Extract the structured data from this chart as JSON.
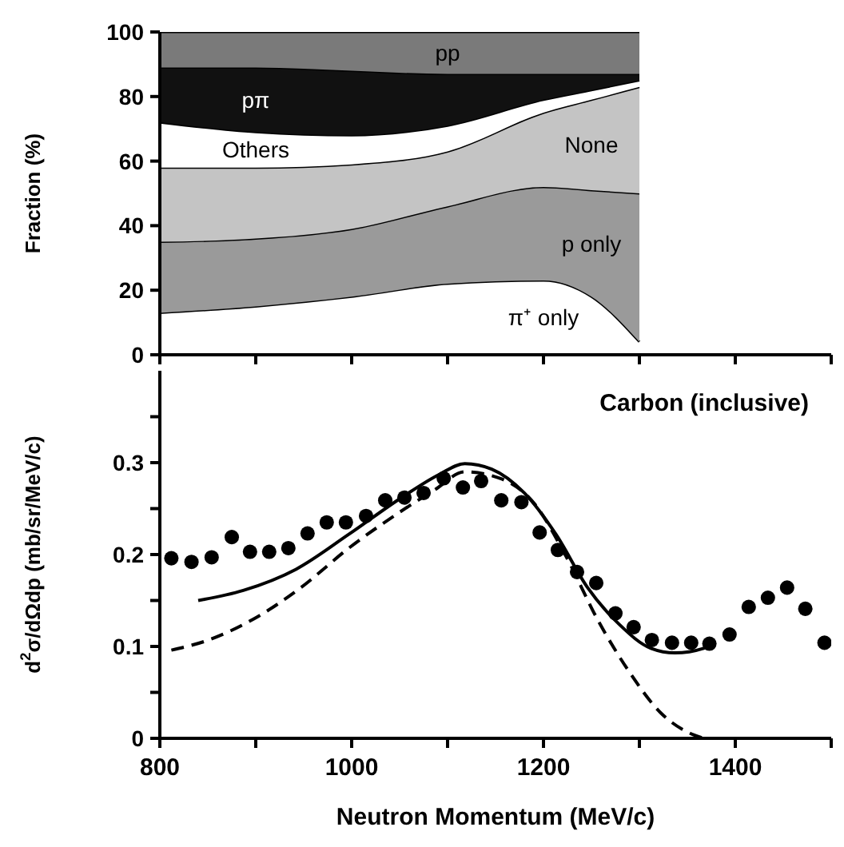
{
  "chart_data": [
    {
      "type": "area",
      "stacked": true,
      "ylabel": "Fraction (%)",
      "xlim": [
        800,
        1500
      ],
      "xticks": [
        800,
        900,
        1000,
        1100,
        1200,
        1300,
        1400,
        1500
      ],
      "ylim": [
        0,
        100
      ],
      "yticks": [
        0,
        20,
        40,
        60,
        80,
        100
      ],
      "tick_labels": "y",
      "x": [
        800,
        900,
        1000,
        1100,
        1200,
        1250,
        1300
      ],
      "series": [
        {
          "name": "π⁺ only",
          "color": "#ffffff",
          "values": [
            13,
            15,
            18,
            22,
            23,
            18,
            4
          ]
        },
        {
          "name": "p only",
          "color": "#9a9a9a",
          "values": [
            22,
            21,
            21,
            24,
            29,
            33,
            46
          ]
        },
        {
          "name": "None",
          "color": "#c4c4c4",
          "values": [
            23,
            22,
            20,
            17,
            23,
            28,
            33
          ]
        },
        {
          "name": "Others",
          "color": "#ffffff",
          "values": [
            14,
            11,
            9,
            8,
            4,
            3,
            2
          ]
        },
        {
          "name": "pπ",
          "color": "#111111",
          "values": [
            17,
            20,
            20,
            16,
            8,
            5,
            2
          ]
        },
        {
          "name": "pp",
          "color": "#7a7a7a",
          "values": [
            11,
            11,
            12,
            13,
            13,
            13,
            13
          ]
        }
      ]
    },
    {
      "type": "scatter",
      "xlabel": "Neutron Momentum (MeV/c)",
      "ylabel": "d$^{2}$σ/dΩdp (mb/sr/MeV/c)",
      "annotations": [
        "Carbon (inclusive)"
      ],
      "xlim": [
        800,
        1500
      ],
      "xticks": [
        800,
        {
          "value": 900,
          "label": null
        },
        1000,
        {
          "value": 1100,
          "label": null
        },
        1200,
        {
          "value": 1300,
          "label": null
        },
        1400,
        {
          "value": 1500,
          "label": null
        }
      ],
      "ylim": [
        0,
        0.4
      ],
      "yticks": [
        0,
        {
          "value": 0.05,
          "label": null
        },
        0.1,
        {
          "value": 0.15,
          "label": null
        },
        0.2,
        {
          "value": 0.25,
          "label": null
        },
        0.3,
        {
          "value": 0.35,
          "label": null
        }
      ],
      "series": [
        {
          "type": "scatter",
          "marker": "circle",
          "color": "#000000",
          "x": [
            812,
            833,
            854,
            875,
            894,
            914,
            934,
            954,
            974,
            994,
            1015,
            1035,
            1055,
            1075,
            1096,
            1116,
            1135,
            1156,
            1177,
            1196,
            1215,
            1235,
            1255,
            1275,
            1294,
            1313,
            1334,
            1354,
            1373,
            1394,
            1414,
            1434,
            1454,
            1473,
            1493
          ],
          "values": [
            0.196,
            0.192,
            0.197,
            0.219,
            0.203,
            0.203,
            0.207,
            0.223,
            0.235,
            0.235,
            0.242,
            0.259,
            0.262,
            0.267,
            0.283,
            0.273,
            0.28,
            0.259,
            0.257,
            0.224,
            0.205,
            0.181,
            0.169,
            0.136,
            0.121,
            0.107,
            0.104,
            0.104,
            0.103,
            0.113,
            0.143,
            0.153,
            0.164,
            0.141,
            0.104
          ]
        },
        {
          "type": "line",
          "line_style": "solid",
          "color": "#000000",
          "x": [
            840,
            887,
            942,
            997,
            1052,
            1091,
            1118,
            1146,
            1180,
            1213,
            1246,
            1279,
            1312,
            1337,
            1367,
            1373
          ],
          "values": [
            0.15,
            0.161,
            0.184,
            0.222,
            0.262,
            0.287,
            0.299,
            0.293,
            0.267,
            0.222,
            0.164,
            0.124,
            0.098,
            0.093,
            0.098,
            0.101
          ]
        },
        {
          "type": "line",
          "line_style": "dashed",
          "color": "#000000",
          "x": [
            812,
            848,
            898,
            947,
            997,
            1047,
            1086,
            1118,
            1157,
            1190,
            1223,
            1256,
            1289,
            1323,
            1356,
            1367
          ],
          "values": [
            0.096,
            0.106,
            0.13,
            0.164,
            0.207,
            0.244,
            0.27,
            0.29,
            0.282,
            0.256,
            0.199,
            0.13,
            0.073,
            0.027,
            0.004,
            0
          ]
        }
      ]
    }
  ]
}
